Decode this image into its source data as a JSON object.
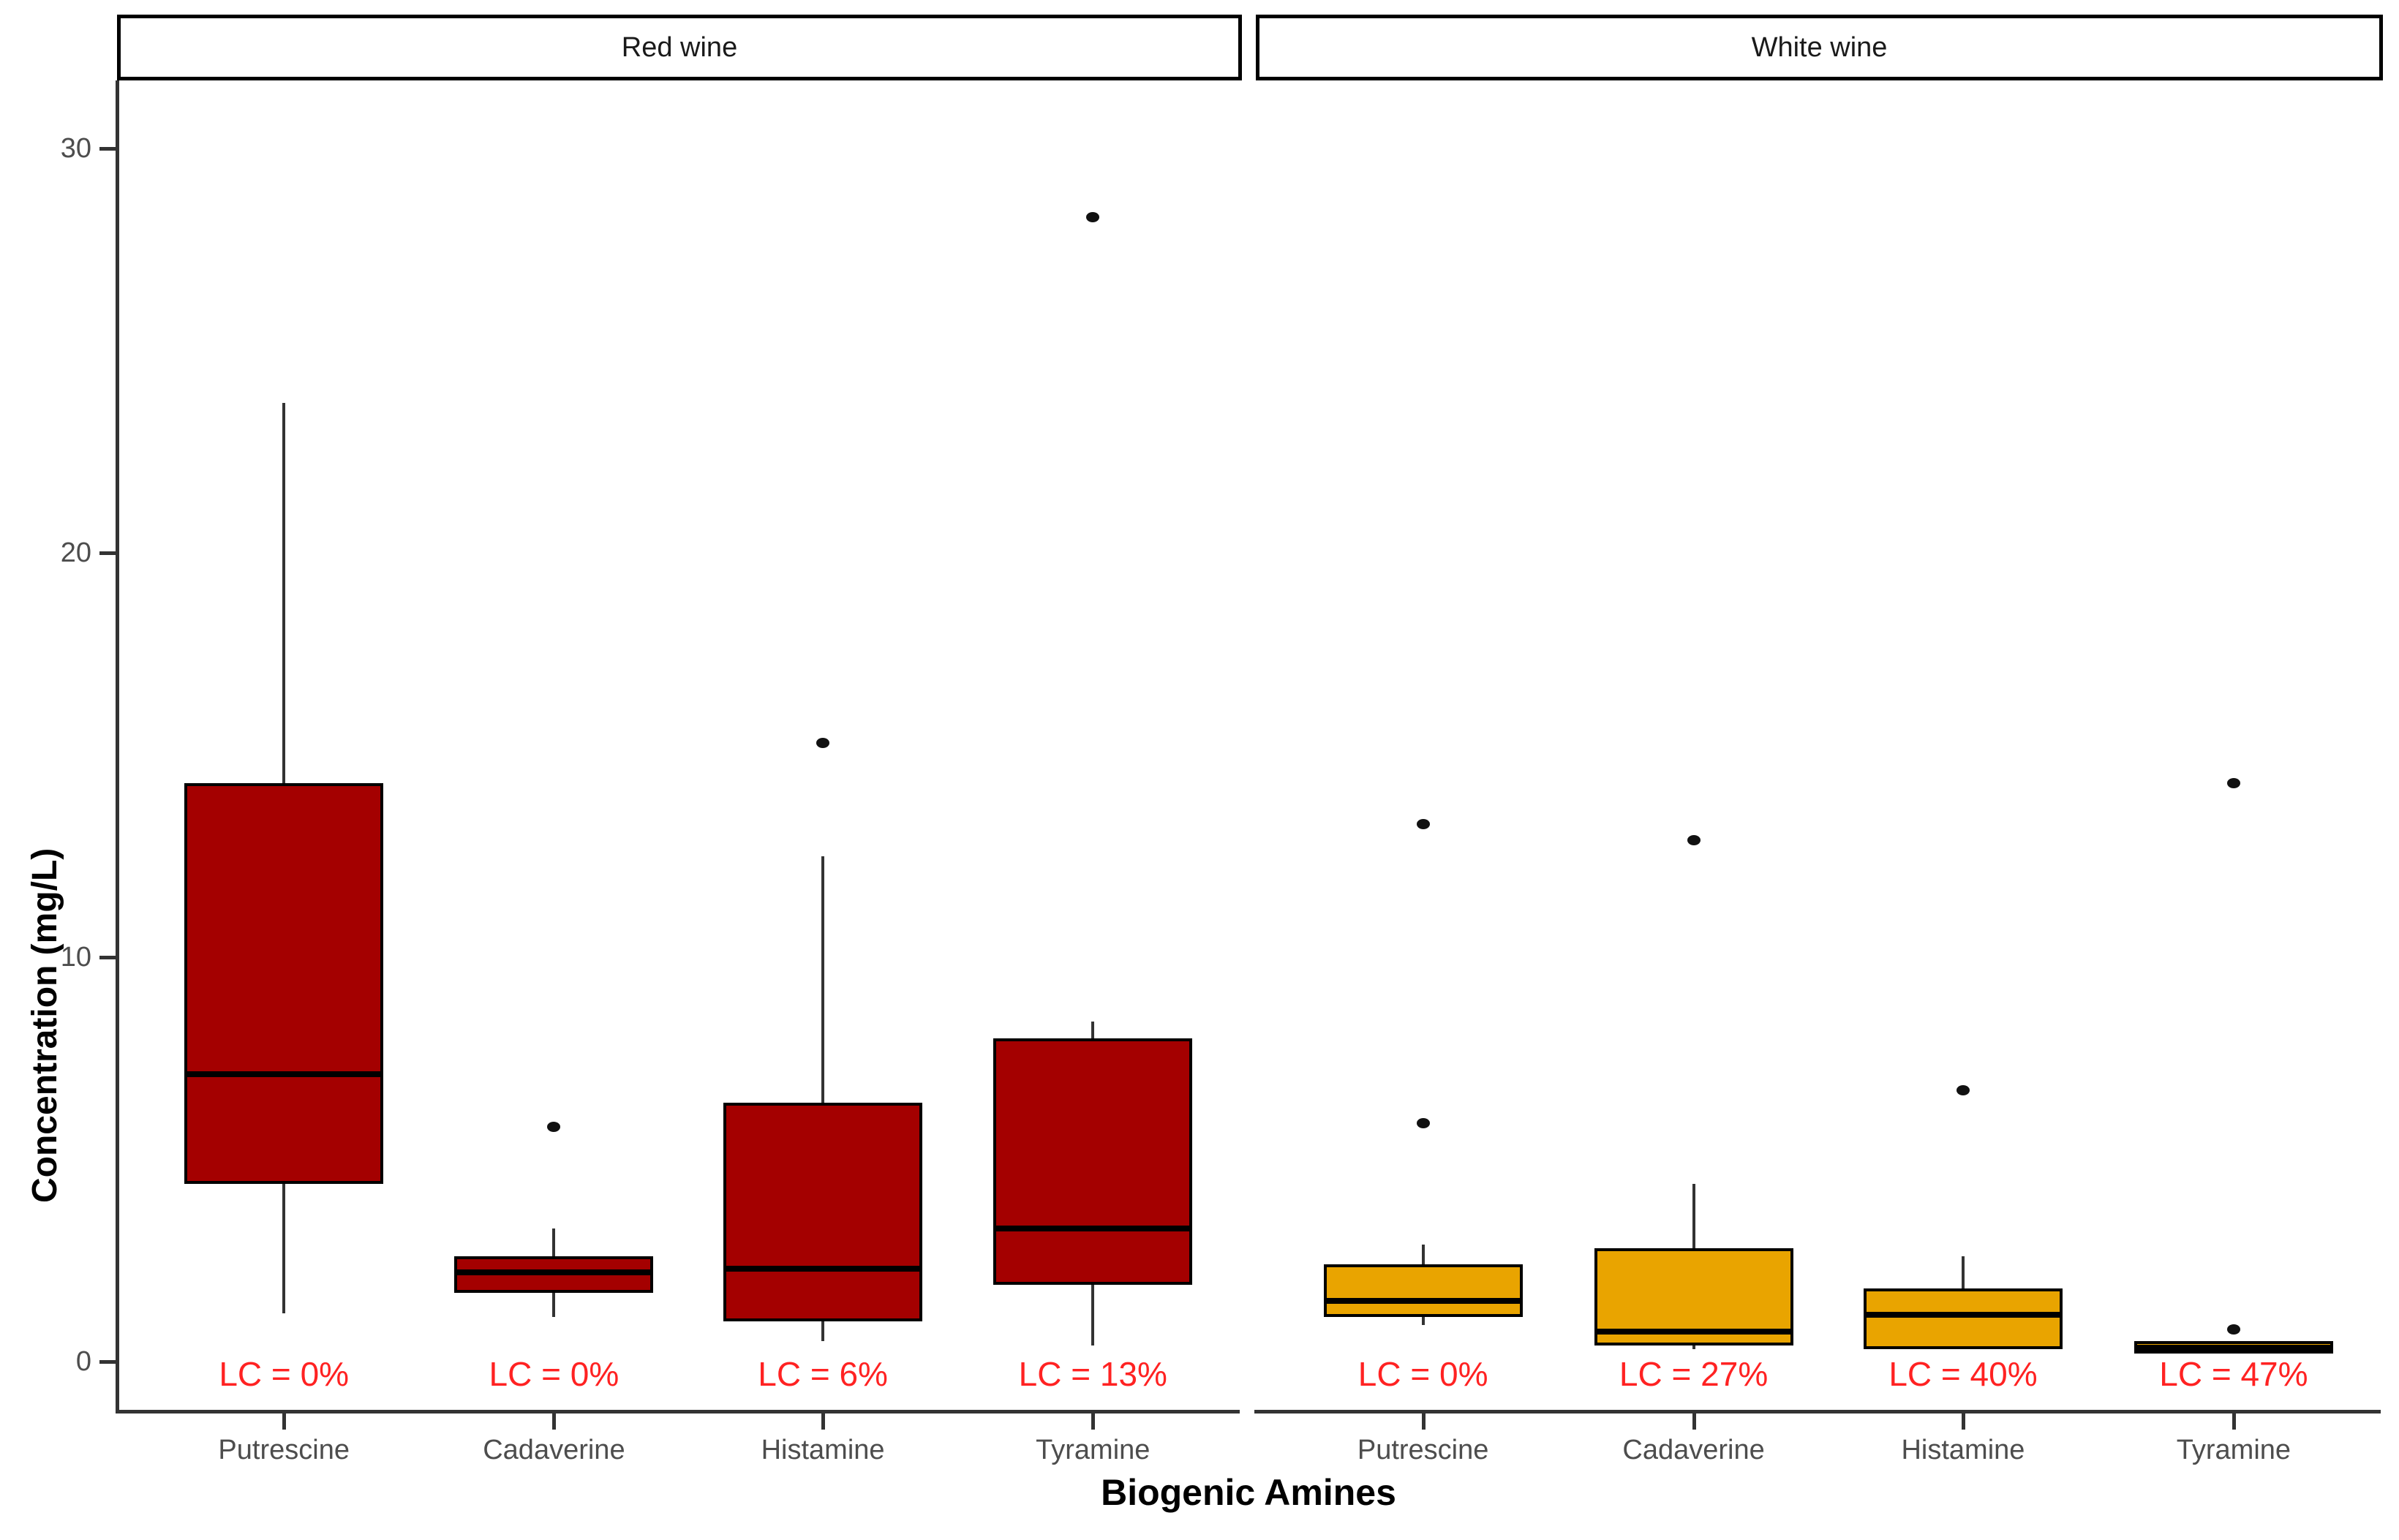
{
  "axes": {
    "y_title": "Concentration (mg/L)",
    "x_title": "Biogenic Amines"
  },
  "chart_data": {
    "type": "boxplot",
    "title": "",
    "xlabel": "Biogenic Amines",
    "ylabel": "Concentration (mg/L)",
    "ylim": [
      0,
      31.8
    ],
    "y_ticks": [
      0,
      10,
      20,
      30
    ],
    "grid": false,
    "legend": "none",
    "categories": [
      "Putrescine",
      "Cadaverine",
      "Histamine",
      "Tyramine"
    ],
    "colors": {
      "red_wine_fill": "#A40000",
      "white_wine_fill": "#E9A400",
      "box_border": "#000000",
      "whisker": "#333333",
      "axis_text": "#4d4d4d",
      "lc_text": "#ff2222"
    },
    "facets": [
      {
        "label": "Red wine",
        "fill": "#A40000",
        "boxes": [
          {
            "category": "Putrescine",
            "lc": "LC = 0%",
            "low": 1.2,
            "q1": 4.4,
            "median": 7.1,
            "q3": 14.3,
            "high": 23.7,
            "outliers": []
          },
          {
            "category": "Cadaverine",
            "lc": "LC = 0%",
            "low": 1.1,
            "q1": 1.7,
            "median": 2.2,
            "q3": 2.6,
            "high": 3.3,
            "outliers": [
              5.8
            ]
          },
          {
            "category": "Histamine",
            "lc": "LC = 6%",
            "low": 0.5,
            "q1": 1.0,
            "median": 2.3,
            "q3": 6.4,
            "high": 12.5,
            "outliers": [
              15.3
            ]
          },
          {
            "category": "Tyramine",
            "lc": "LC = 13%",
            "low": 0.4,
            "q1": 1.9,
            "median": 3.3,
            "q3": 8.0,
            "high": 8.4,
            "outliers": [
              28.3
            ]
          }
        ]
      },
      {
        "label": "White wine",
        "fill": "#E9A400",
        "boxes": [
          {
            "category": "Putrescine",
            "lc": "LC = 0%",
            "low": 0.9,
            "q1": 1.1,
            "median": 1.5,
            "q3": 2.4,
            "high": 2.9,
            "outliers": [
              5.9,
              13.3
            ]
          },
          {
            "category": "Cadaverine",
            "lc": "LC = 27%",
            "low": 0.3,
            "q1": 0.4,
            "median": 0.75,
            "q3": 2.8,
            "high": 4.4,
            "outliers": [
              12.9
            ]
          },
          {
            "category": "Histamine",
            "lc": "LC = 40%",
            "low": 0.3,
            "q1": 0.3,
            "median": 1.15,
            "q3": 1.8,
            "high": 2.6,
            "outliers": [
              6.7
            ]
          },
          {
            "category": "Tyramine",
            "lc": "LC = 47%",
            "low": 0.2,
            "q1": 0.2,
            "median": 0.35,
            "q3": 0.5,
            "high": 0.5,
            "outliers": [
              0.8,
              14.3
            ]
          }
        ]
      }
    ]
  }
}
